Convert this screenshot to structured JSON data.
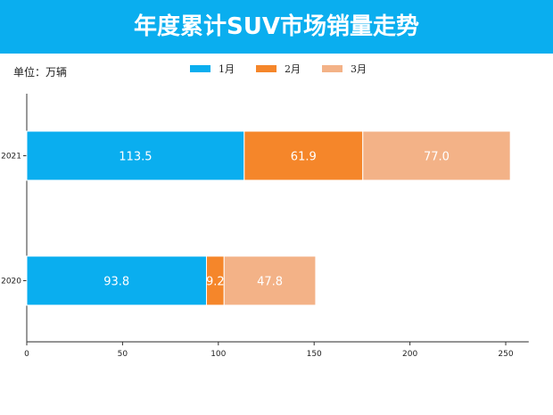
{
  "header": {
    "title": "年度累计SUV市场销量走势"
  },
  "unit_label": "单位：万辆",
  "chart_data": {
    "type": "bar",
    "orientation": "horizontal",
    "stacked": true,
    "categories": [
      "2021",
      "2020"
    ],
    "series": [
      {
        "name": "1月",
        "values": [
          113.5,
          93.8
        ],
        "color": "#0aaeef"
      },
      {
        "name": "2月",
        "values": [
          61.9,
          9.2
        ],
        "color": "#f5862a"
      },
      {
        "name": "3月",
        "values": [
          77.0,
          47.8
        ],
        "color": "#f3b287"
      }
    ],
    "data_labels": [
      [
        "113.5",
        "93.8"
      ],
      [
        "61.9",
        "9.2"
      ],
      [
        "77.0",
        "47.8"
      ]
    ],
    "xlim": [
      0,
      262
    ],
    "xticks": [
      "0",
      "50",
      "100",
      "150",
      "200",
      "250"
    ],
    "grid": false,
    "legend_placement": "top-center"
  }
}
